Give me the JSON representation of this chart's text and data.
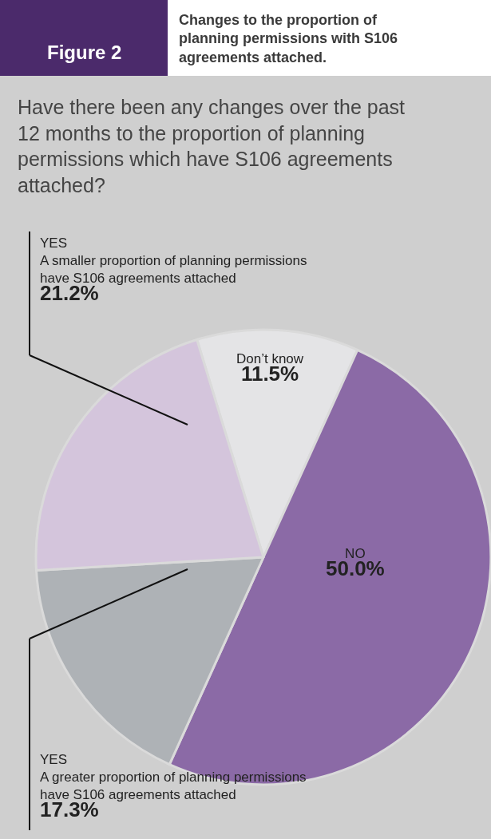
{
  "chart_data": {
    "type": "pie",
    "title": "Changes to the proportion of planning permissions with S106 agreements attached.",
    "subtitle": "Have there been any changes over the past 12 months to the proportion of planning permissions which have S106 agreements attached?",
    "annotations": [
      "Figure 2"
    ],
    "categories": [
      "Don’t know",
      "NO",
      "YES A greater proportion of planning permissions have S106 agreements attached",
      "YES A smaller proportion of planning permissions have S106 agreements attached"
    ],
    "values": [
      11.5,
      50.0,
      17.3,
      21.2
    ],
    "colors": [
      "#e4e4e6",
      "#8b6aa6",
      "#aeb2b6",
      "#d4c5dc"
    ],
    "value_labels": [
      "11.5%",
      "50.0%",
      "17.3%",
      "21.2%"
    ],
    "legend": false
  }
}
